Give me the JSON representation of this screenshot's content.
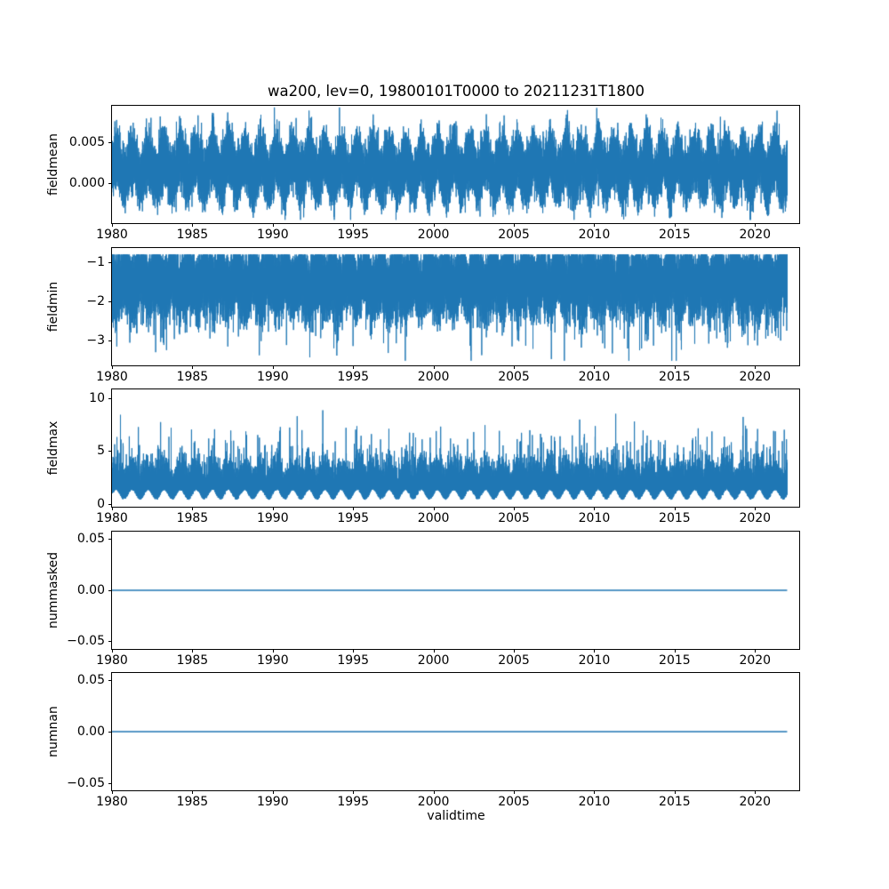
{
  "figure": {
    "title": "wa200, lev=0, 19800101T0000 to 20211231T1800",
    "xlabel": "validtime",
    "xlim": [
      1980,
      2022.75
    ],
    "x_data_range": [
      1980.0,
      2022.0
    ],
    "xtick_values": [
      1980,
      1985,
      1990,
      1995,
      2000,
      2005,
      2010,
      2015,
      2020
    ],
    "xtick_labels": [
      "1980",
      "1985",
      "1990",
      "1995",
      "2000",
      "2005",
      "2010",
      "2015",
      "2020"
    ],
    "line_color": "#1f77b4",
    "background_color": "#ffffff",
    "n_points": 30000
  },
  "chart_data": [
    {
      "type": "line",
      "ylabel": "fieldmean",
      "ylim": [
        -0.0048,
        0.0094
      ],
      "yticks": [
        0.0,
        0.005
      ],
      "ytick_labels": [
        "0.000",
        "0.005"
      ],
      "approx_value_range": [
        -0.0044,
        0.0092
      ],
      "gen": {
        "seed": 11,
        "base": 0.0018,
        "seasonal": 0.0013,
        "noise": 0.0017,
        "abs": false,
        "spike_prob": 0.012,
        "spike": 0.004,
        "clip": [
          -0.0044,
          0.0092
        ],
        "linewidth": 1
      }
    },
    {
      "type": "line",
      "ylabel": "fieldmin",
      "ylim": [
        -3.64,
        -0.61
      ],
      "yticks": [
        -1,
        -2,
        -3
      ],
      "ytick_labels": [
        "−1",
        "−2",
        "−3"
      ],
      "approx_value_range": [
        -3.52,
        -0.78
      ],
      "gen": {
        "seed": 22,
        "base": -1.5,
        "seasonal": -0.18,
        "noise": 0.4,
        "abs": false,
        "spike_prob": 0.02,
        "spike": -1.4,
        "clip": [
          -3.52,
          -0.78
        ],
        "linewidth": 1
      }
    },
    {
      "type": "line",
      "ylabel": "fieldmax",
      "ylim": [
        -0.25,
        10.8
      ],
      "yticks": [
        0,
        5,
        10
      ],
      "ytick_labels": [
        "0",
        "5",
        "10"
      ],
      "approx_value_range": [
        0.3,
        10.35
      ],
      "gen": {
        "seed": 33,
        "base": 0.85,
        "seasonal": 0.45,
        "noise": 1.3,
        "abs": true,
        "spike_prob": 0.02,
        "spike": 4.5,
        "clip": [
          0.3,
          10.35
        ],
        "linewidth": 1
      }
    },
    {
      "type": "line",
      "ylabel": "nummasked",
      "ylim": [
        -0.057,
        0.057
      ],
      "yticks": [
        -0.05,
        0.0,
        0.05
      ],
      "ytick_labels": [
        "−0.05",
        "0.00",
        "0.05"
      ],
      "approx_value_range": [
        0,
        0
      ],
      "gen": {
        "seed": 44,
        "base": 0,
        "seasonal": 0,
        "noise": 0,
        "abs": false,
        "spike_prob": 0,
        "spike": 0,
        "clip": [
          0,
          0
        ],
        "linewidth": 1.5
      }
    },
    {
      "type": "line",
      "ylabel": "numnan",
      "ylim": [
        -0.057,
        0.057
      ],
      "yticks": [
        -0.05,
        0.0,
        0.05
      ],
      "ytick_labels": [
        "−0.05",
        "0.00",
        "0.05"
      ],
      "approx_value_range": [
        0,
        0
      ],
      "gen": {
        "seed": 55,
        "base": 0,
        "seasonal": 0,
        "noise": 0,
        "abs": false,
        "spike_prob": 0,
        "spike": 0,
        "clip": [
          0,
          0
        ],
        "linewidth": 1.5
      }
    }
  ]
}
